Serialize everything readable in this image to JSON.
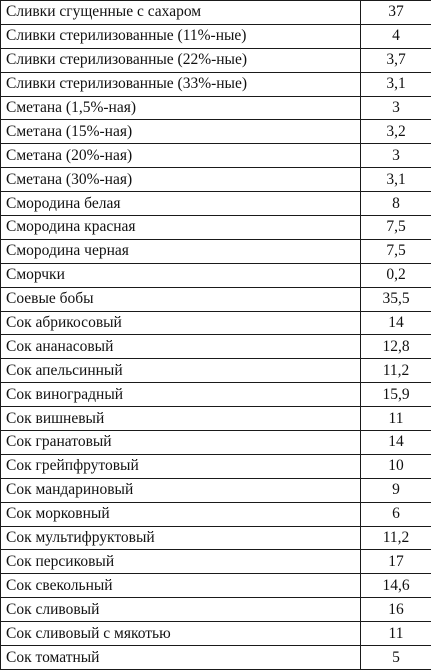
{
  "rows": [
    {
      "name": "Сливки сгущенные с сахаром",
      "value": "37"
    },
    {
      "name": "Сливки стерилизованные (11%-ные)",
      "value": "4"
    },
    {
      "name": "Сливки стерилизованные (22%-ные)",
      "value": "3,7"
    },
    {
      "name": "Сливки стерилизованные (33%-ные)",
      "value": "3,1"
    },
    {
      "name": "Сметана (1,5%-ная)",
      "value": "3"
    },
    {
      "name": "Сметана (15%-ная)",
      "value": "3,2"
    },
    {
      "name": "Сметана (20%-ная)",
      "value": "3"
    },
    {
      "name": "Сметана (30%-ная)",
      "value": "3,1"
    },
    {
      "name": "Смородина белая",
      "value": "8"
    },
    {
      "name": "Смородина красная",
      "value": "7,5"
    },
    {
      "name": "Смородина черная",
      "value": "7,5"
    },
    {
      "name": "Сморчки",
      "value": "0,2"
    },
    {
      "name": "Соевые бобы",
      "value": "35,5"
    },
    {
      "name": "Сок абрикосовый",
      "value": "14"
    },
    {
      "name": "Сок ананасовый",
      "value": "12,8"
    },
    {
      "name": "Сок апельсинный",
      "value": "11,2"
    },
    {
      "name": "Сок виноградный",
      "value": "15,9"
    },
    {
      "name": "Сок вишневый",
      "value": "11"
    },
    {
      "name": "Сок гранатовый",
      "value": "14"
    },
    {
      "name": "Сок грейпфрутовый",
      "value": "10"
    },
    {
      "name": "Сок мандариновый",
      "value": "9"
    },
    {
      "name": "Сок морковный",
      "value": "6"
    },
    {
      "name": "Сок мультифруктовый",
      "value": "11,2"
    },
    {
      "name": "Сок персиковый",
      "value": "17"
    },
    {
      "name": "Сок свекольный",
      "value": "14,6"
    },
    {
      "name": "Сок сливовый",
      "value": "16"
    },
    {
      "name": "Сок сливовый с мякотью",
      "value": "11"
    },
    {
      "name": "Сок томатный",
      "value": "5"
    }
  ]
}
